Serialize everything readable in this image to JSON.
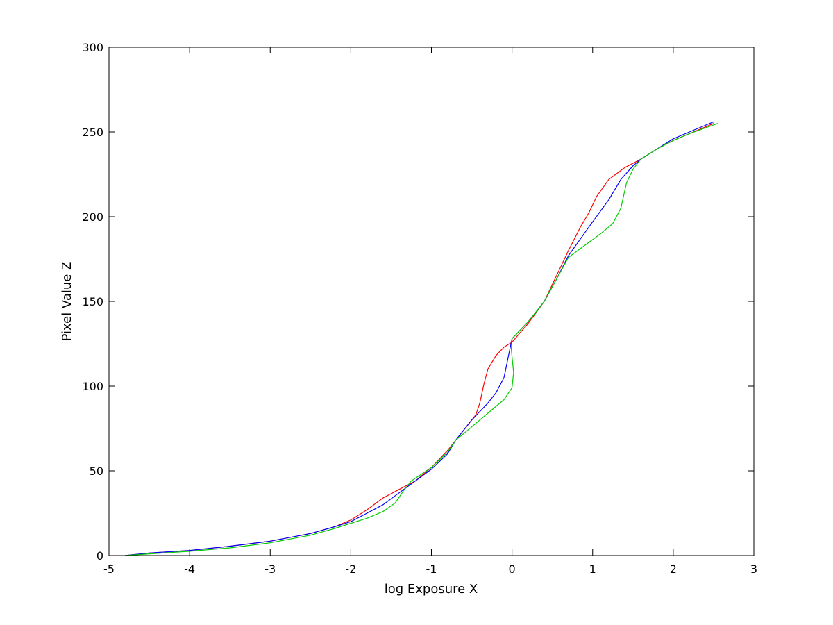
{
  "chart_data": {
    "type": "line",
    "title": "",
    "xlabel": "log Exposure X",
    "ylabel": "Pixel Value Z",
    "xlim": [
      -5,
      3
    ],
    "ylim": [
      0,
      300
    ],
    "x_ticks": [
      -5,
      -4,
      -3,
      -2,
      -1,
      0,
      1,
      2,
      3
    ],
    "y_ticks": [
      0,
      50,
      100,
      150,
      200,
      250,
      300
    ],
    "x_tick_labels": [
      "-5",
      "-4",
      "-3",
      "-2",
      "-1",
      "0",
      "1",
      "2",
      "3"
    ],
    "y_tick_labels": [
      "0",
      "50",
      "100",
      "150",
      "200",
      "250",
      "300"
    ],
    "grid": false,
    "legend": "none",
    "series": [
      {
        "color": "#ff0000",
        "points": [
          [
            -4.8,
            0
          ],
          [
            -4.5,
            1.5
          ],
          [
            -4.0,
            3
          ],
          [
            -3.5,
            5.5
          ],
          [
            -3.0,
            8.5
          ],
          [
            -2.5,
            13
          ],
          [
            -2.2,
            17
          ],
          [
            -2.0,
            21
          ],
          [
            -1.8,
            27
          ],
          [
            -1.6,
            34
          ],
          [
            -1.4,
            39
          ],
          [
            -1.2,
            44
          ],
          [
            -1.0,
            52
          ],
          [
            -0.8,
            62
          ],
          [
            -0.6,
            74
          ],
          [
            -0.45,
            83
          ],
          [
            -0.4,
            90
          ],
          [
            -0.35,
            101
          ],
          [
            -0.3,
            110
          ],
          [
            -0.2,
            118
          ],
          [
            -0.1,
            123
          ],
          [
            0.0,
            126
          ],
          [
            0.2,
            137
          ],
          [
            0.4,
            150
          ],
          [
            0.55,
            165
          ],
          [
            0.7,
            180
          ],
          [
            0.85,
            194
          ],
          [
            0.95,
            202
          ],
          [
            1.05,
            212
          ],
          [
            1.2,
            222
          ],
          [
            1.4,
            229
          ],
          [
            1.6,
            234
          ],
          [
            1.8,
            240
          ],
          [
            2.0,
            245
          ],
          [
            2.2,
            249
          ],
          [
            2.5,
            255
          ]
        ]
      },
      {
        "color": "#0000ff",
        "points": [
          [
            -4.8,
            0
          ],
          [
            -4.5,
            1.5
          ],
          [
            -4.0,
            3
          ],
          [
            -3.5,
            5.5
          ],
          [
            -3.0,
            8.5
          ],
          [
            -2.5,
            13
          ],
          [
            -2.2,
            17
          ],
          [
            -2.0,
            20
          ],
          [
            -1.8,
            25
          ],
          [
            -1.6,
            30
          ],
          [
            -1.4,
            37
          ],
          [
            -1.2,
            44
          ],
          [
            -1.0,
            51
          ],
          [
            -0.8,
            60
          ],
          [
            -0.7,
            68
          ],
          [
            -0.5,
            80
          ],
          [
            -0.4,
            85
          ],
          [
            -0.3,
            90
          ],
          [
            -0.2,
            96
          ],
          [
            -0.1,
            105
          ],
          [
            0.0,
            128
          ],
          [
            0.2,
            138
          ],
          [
            0.4,
            150
          ],
          [
            0.55,
            163
          ],
          [
            0.7,
            177
          ],
          [
            0.85,
            187
          ],
          [
            1.0,
            197
          ],
          [
            1.2,
            210
          ],
          [
            1.35,
            222
          ],
          [
            1.5,
            230
          ],
          [
            1.6,
            234
          ],
          [
            1.8,
            240
          ],
          [
            2.0,
            246
          ],
          [
            2.2,
            250
          ],
          [
            2.5,
            256
          ]
        ]
      },
      {
        "color": "#00cc00",
        "points": [
          [
            -4.8,
            0
          ],
          [
            -4.5,
            1
          ],
          [
            -4.0,
            2.5
          ],
          [
            -3.5,
            4.5
          ],
          [
            -3.0,
            7.5
          ],
          [
            -2.5,
            12
          ],
          [
            -2.2,
            16
          ],
          [
            -2.0,
            19
          ],
          [
            -1.8,
            22
          ],
          [
            -1.6,
            26
          ],
          [
            -1.45,
            31
          ],
          [
            -1.35,
            38
          ],
          [
            -1.25,
            44
          ],
          [
            -1.0,
            52
          ],
          [
            -0.8,
            61
          ],
          [
            -0.7,
            68
          ],
          [
            -0.5,
            76
          ],
          [
            -0.3,
            84
          ],
          [
            -0.1,
            92
          ],
          [
            0.0,
            99
          ],
          [
            0.02,
            108
          ],
          [
            -0.01,
            122
          ],
          [
            0.0,
            128
          ],
          [
            0.2,
            138
          ],
          [
            0.4,
            150
          ],
          [
            0.55,
            163
          ],
          [
            0.7,
            176
          ],
          [
            0.9,
            183
          ],
          [
            1.1,
            190
          ],
          [
            1.25,
            196
          ],
          [
            1.35,
            205
          ],
          [
            1.42,
            220
          ],
          [
            1.5,
            228
          ],
          [
            1.6,
            234
          ],
          [
            1.8,
            240
          ],
          [
            2.0,
            245
          ],
          [
            2.2,
            249
          ],
          [
            2.55,
            255
          ]
        ]
      }
    ]
  }
}
